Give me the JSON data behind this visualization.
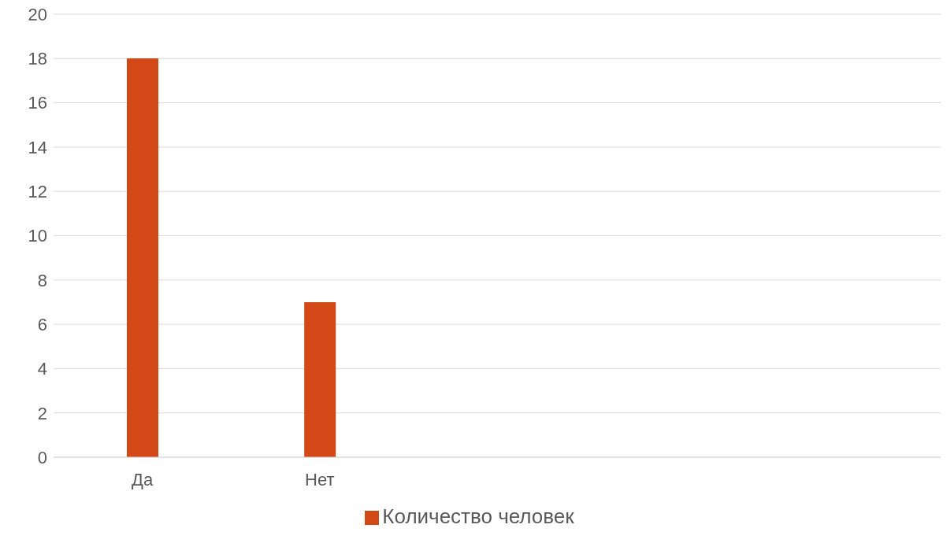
{
  "chart_data": {
    "type": "bar",
    "categories": [
      "Да",
      "Нет",
      null,
      null,
      null
    ],
    "series": [
      {
        "name": "Количество человек",
        "color": "#d34817",
        "values": [
          18,
          7,
          null,
          null,
          null
        ]
      }
    ],
    "ylim": [
      0,
      20
    ],
    "yticks": [
      0,
      2,
      4,
      6,
      8,
      10,
      12,
      14,
      16,
      18,
      20
    ],
    "grid": "y",
    "legend": "bottom"
  }
}
